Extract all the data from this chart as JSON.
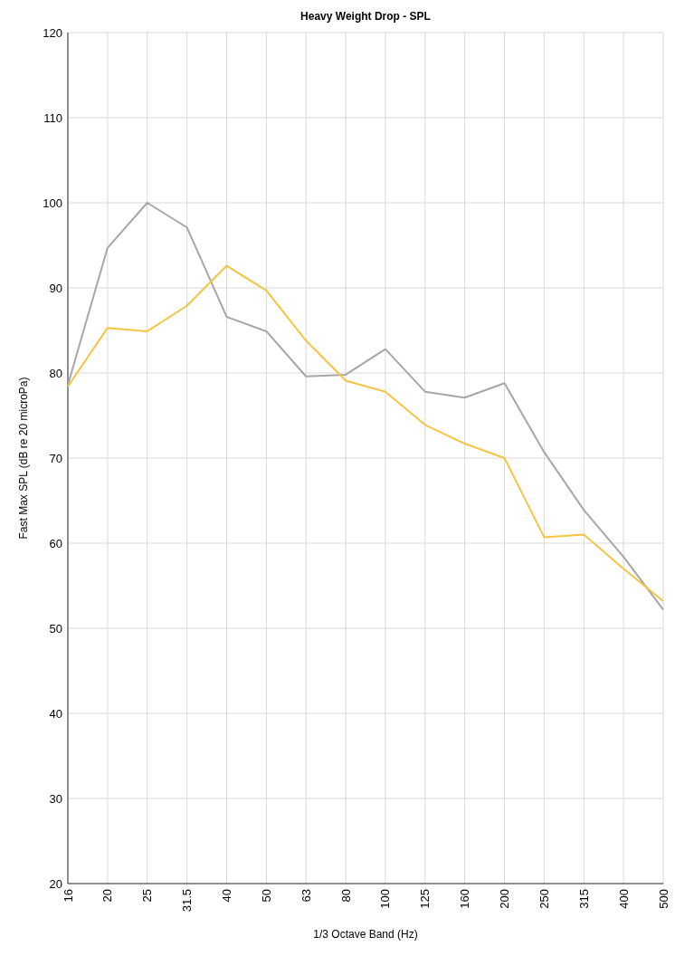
{
  "chart_data": {
    "type": "line",
    "title": "Heavy Weight Drop - SPL",
    "xlabel": "1/3 Octave Band (Hz)",
    "ylabel": "Fast Max SPL (dB re 20 microPa)",
    "categories": [
      "16",
      "20",
      "25",
      "31.5",
      "40",
      "50",
      "63",
      "80",
      "100",
      "125",
      "160",
      "200",
      "250",
      "315",
      "400",
      "500"
    ],
    "series": [
      {
        "color": "#a6a6a6",
        "values": [
          78.6,
          94.7,
          100,
          97.1,
          86.6,
          84.9,
          79.6,
          79.8,
          82.8,
          77.8,
          77.1,
          78.8,
          70.7,
          63.9,
          58.4,
          52.2
        ]
      },
      {
        "color": "#f4c542",
        "values": [
          78.4,
          85.3,
          84.9,
          87.9,
          92.6,
          89.7,
          83.8,
          79.1,
          77.8,
          73.9,
          71.7,
          70,
          60.7,
          61,
          57,
          53.2
        ]
      }
    ],
    "ylim": [
      20,
      120
    ],
    "yticks": [
      20,
      30,
      40,
      50,
      60,
      70,
      80,
      90,
      100,
      110,
      120
    ],
    "grid": true,
    "marker": "none",
    "line_style": "solid"
  }
}
